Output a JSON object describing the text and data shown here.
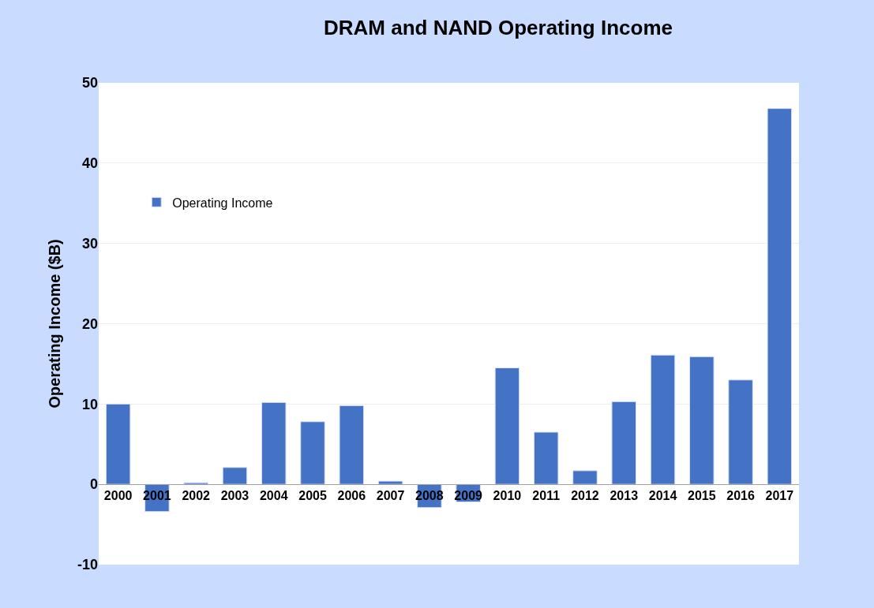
{
  "chart_data": {
    "type": "bar",
    "title": "DRAM and NAND Operating Income",
    "ylabel": "Operating Income ($B)",
    "categories": [
      "2000",
      "2001",
      "2002",
      "2003",
      "2004",
      "2005",
      "2006",
      "2007",
      "2008",
      "2009",
      "2010",
      "2011",
      "2012",
      "2013",
      "2014",
      "2015",
      "2016",
      "2017"
    ],
    "series": [
      {
        "name": "Operating Income",
        "color": "#4472c4",
        "values": [
          10.0,
          -3.4,
          0.2,
          2.1,
          10.2,
          7.8,
          9.8,
          0.4,
          -2.9,
          -2.2,
          14.5,
          6.5,
          1.7,
          10.3,
          16.1,
          15.9,
          13.0,
          46.8
        ]
      }
    ],
    "ylim": [
      -10,
      50
    ],
    "yticks": [
      -10,
      0,
      10,
      20,
      30,
      40,
      50
    ],
    "grid": "y",
    "legend": "top left"
  }
}
